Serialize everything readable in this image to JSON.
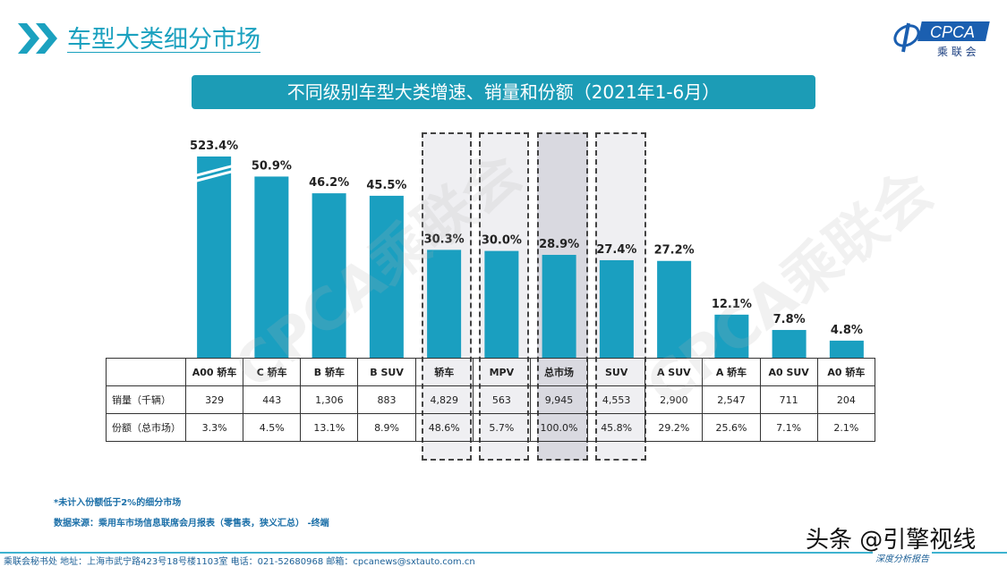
{
  "header": {
    "title": "车型大类细分市场",
    "banner": "不同级别车型大类增速、销量和份额（2021年1-6月）",
    "logo_text": "CPCA",
    "logo_sub": "乘联会",
    "logo_mark": "CPCA"
  },
  "watermark": "CPCA乘联会",
  "colors": {
    "bar": "#1a9fc0",
    "accent": "#1ba1bf",
    "highlight_fill": "#d9d9e0",
    "dashed_fill": "#efeff2"
  },
  "chart_data": {
    "type": "bar",
    "categories": [
      "A00 轿车",
      "C 轿车",
      "B 轿车",
      "B SUV",
      "轿车",
      "MPV",
      "总市场",
      "SUV",
      "A SUV",
      "A 轿车",
      "A0 SUV",
      "A0 轿车"
    ],
    "values": [
      523.4,
      50.9,
      46.2,
      45.5,
      30.3,
      30.0,
      28.9,
      27.4,
      27.2,
      12.1,
      7.8,
      4.8
    ],
    "labels": [
      "523.4%",
      "50.9%",
      "46.2%",
      "45.5%",
      "30.3%",
      "30.0%",
      "28.9%",
      "27.4%",
      "27.2%",
      "12.1%",
      "7.8%",
      "4.8%"
    ],
    "broken_axis_category": "A00 轿车",
    "dashed_boxes": [
      "轿车",
      "MPV",
      "总市场",
      "SUV"
    ],
    "highlighted": "总市场",
    "table": {
      "rows": [
        {
          "label": "销量（千辆）",
          "values": [
            "329",
            "443",
            "1,306",
            "883",
            "4,829",
            "563",
            "9,945",
            "4,553",
            "2,900",
            "2,547",
            "711",
            "204"
          ]
        },
        {
          "label": "份额（总市场）",
          "values": [
            "3.3%",
            "4.5%",
            "13.1%",
            "8.9%",
            "48.6%",
            "5.7%",
            "100.0%",
            "45.8%",
            "29.2%",
            "25.6%",
            "7.1%",
            "2.1%"
          ]
        }
      ]
    }
  },
  "notes": {
    "note1": "*未计入份额低于2%的细分市场",
    "note2": "数据来源：乘用车市场信息联席会月报表（零售表，狭义汇总）   -终端"
  },
  "footer": {
    "text": "乘联会秘书处   地址：上海市武宁路423号18号楼1103室   电话：021-52680968   邮箱：cpcanews@sxtauto.com.cn",
    "subtitle": "深度分析报告"
  },
  "toutiao": "头条 @引擎视线"
}
